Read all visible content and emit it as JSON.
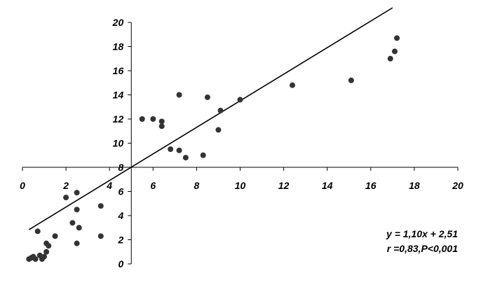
{
  "chart_data": {
    "type": "scatter",
    "title": "",
    "xlabel": "",
    "ylabel": "",
    "xlim": [
      0,
      20
    ],
    "ylim": [
      0,
      20
    ],
    "x_ticks": [
      0,
      2,
      4,
      6,
      8,
      10,
      12,
      14,
      16,
      18,
      20
    ],
    "y_ticks": [
      0,
      2,
      4,
      6,
      8,
      10,
      12,
      14,
      16,
      18,
      20
    ],
    "y_axis_position_x": 5,
    "x_axis_position_y": 8,
    "grid": false,
    "marker_color": "#333333",
    "line_color": "#000000",
    "points": [
      {
        "x": 0.3,
        "y": 0.4
      },
      {
        "x": 0.4,
        "y": 0.5
      },
      {
        "x": 0.5,
        "y": 0.6
      },
      {
        "x": 0.6,
        "y": 0.4
      },
      {
        "x": 0.8,
        "y": 0.7
      },
      {
        "x": 0.9,
        "y": 0.4
      },
      {
        "x": 1.0,
        "y": 0.6
      },
      {
        "x": 0.7,
        "y": 2.7
      },
      {
        "x": 1.1,
        "y": 1.0
      },
      {
        "x": 1.1,
        "y": 1.7
      },
      {
        "x": 1.2,
        "y": 1.5
      },
      {
        "x": 1.5,
        "y": 2.3
      },
      {
        "x": 2.0,
        "y": 5.5
      },
      {
        "x": 2.3,
        "y": 3.4
      },
      {
        "x": 2.5,
        "y": 5.9
      },
      {
        "x": 2.5,
        "y": 4.5
      },
      {
        "x": 2.6,
        "y": 3.0
      },
      {
        "x": 2.5,
        "y": 1.7
      },
      {
        "x": 3.6,
        "y": 2.3
      },
      {
        "x": 3.6,
        "y": 4.8
      },
      {
        "x": 5.5,
        "y": 12.0
      },
      {
        "x": 6.0,
        "y": 12.0
      },
      {
        "x": 6.4,
        "y": 11.8
      },
      {
        "x": 6.4,
        "y": 11.4
      },
      {
        "x": 6.8,
        "y": 9.5
      },
      {
        "x": 7.2,
        "y": 9.4
      },
      {
        "x": 7.2,
        "y": 14.0
      },
      {
        "x": 7.5,
        "y": 8.8
      },
      {
        "x": 8.3,
        "y": 9.0
      },
      {
        "x": 8.5,
        "y": 13.8
      },
      {
        "x": 9.0,
        "y": 11.1
      },
      {
        "x": 9.1,
        "y": 12.7
      },
      {
        "x": 10.0,
        "y": 13.6
      },
      {
        "x": 12.4,
        "y": 14.8
      },
      {
        "x": 15.1,
        "y": 15.2
      },
      {
        "x": 16.9,
        "y": 17.0
      },
      {
        "x": 17.1,
        "y": 17.6
      },
      {
        "x": 17.2,
        "y": 18.7
      }
    ],
    "regression": {
      "slope": 1.1,
      "intercept": 2.51,
      "x_start": 0.3,
      "x_end": 17.0
    },
    "annotations": [
      "y = 1,10x + 2,51",
      "r =0,83,P<0,001"
    ]
  }
}
